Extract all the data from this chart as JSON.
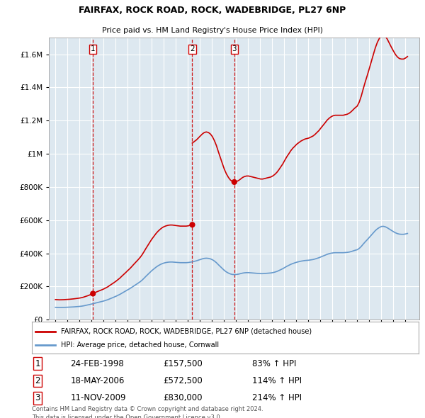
{
  "title": "FAIRFAX, ROCK ROAD, ROCK, WADEBRIDGE, PL27 6NP",
  "subtitle": "Price paid vs. HM Land Registry's House Price Index (HPI)",
  "legend_line1": "FAIRFAX, ROCK ROAD, ROCK, WADEBRIDGE, PL27 6NP (detached house)",
  "legend_line2": "HPI: Average price, detached house, Cornwall",
  "footer1": "Contains HM Land Registry data © Crown copyright and database right 2024.",
  "footer2": "This data is licensed under the Open Government Licence v3.0.",
  "transactions": [
    {
      "num": 1,
      "date": "24-FEB-1998",
      "price": 157500,
      "pct": "83%",
      "direction": "↑"
    },
    {
      "num": 2,
      "date": "18-MAY-2006",
      "price": 572500,
      "pct": "114%",
      "direction": "↑"
    },
    {
      "num": 3,
      "date": "11-NOV-2009",
      "price": 830000,
      "pct": "214%",
      "direction": "↑"
    }
  ],
  "transaction_years": [
    1998.15,
    2006.38,
    2009.86
  ],
  "vline_color": "#cc0000",
  "house_line_color": "#cc0000",
  "hpi_line_color": "#6699cc",
  "background_color": "#ffffff",
  "plot_bg_color": "#dde8f0",
  "grid_color": "#ffffff",
  "ylim": [
    0,
    1700000
  ],
  "xlim": [
    1994.5,
    2025.2
  ],
  "hpi_data_years": [
    1995.04,
    1995.21,
    1995.38,
    1995.54,
    1995.71,
    1995.88,
    1996.04,
    1996.21,
    1996.38,
    1996.54,
    1996.71,
    1996.88,
    1997.04,
    1997.21,
    1997.38,
    1997.54,
    1997.71,
    1997.88,
    1998.04,
    1998.21,
    1998.38,
    1998.54,
    1998.71,
    1998.88,
    1999.04,
    1999.21,
    1999.38,
    1999.54,
    1999.71,
    1999.88,
    2000.04,
    2000.21,
    2000.38,
    2000.54,
    2000.71,
    2000.88,
    2001.04,
    2001.21,
    2001.38,
    2001.54,
    2001.71,
    2001.88,
    2002.04,
    2002.21,
    2002.38,
    2002.54,
    2002.71,
    2002.88,
    2003.04,
    2003.21,
    2003.38,
    2003.54,
    2003.71,
    2003.88,
    2004.04,
    2004.21,
    2004.38,
    2004.54,
    2004.71,
    2004.88,
    2005.04,
    2005.21,
    2005.38,
    2005.54,
    2005.71,
    2005.88,
    2006.04,
    2006.21,
    2006.38,
    2006.54,
    2006.71,
    2006.88,
    2007.04,
    2007.21,
    2007.38,
    2007.54,
    2007.71,
    2007.88,
    2008.04,
    2008.21,
    2008.38,
    2008.54,
    2008.71,
    2008.88,
    2009.04,
    2009.21,
    2009.38,
    2009.54,
    2009.71,
    2009.88,
    2010.04,
    2010.21,
    2010.38,
    2010.54,
    2010.71,
    2010.88,
    2011.04,
    2011.21,
    2011.38,
    2011.54,
    2011.71,
    2011.88,
    2012.04,
    2012.21,
    2012.38,
    2012.54,
    2012.71,
    2012.88,
    2013.04,
    2013.21,
    2013.38,
    2013.54,
    2013.71,
    2013.88,
    2014.04,
    2014.21,
    2014.38,
    2014.54,
    2014.71,
    2014.88,
    2015.04,
    2015.21,
    2015.38,
    2015.54,
    2015.71,
    2015.88,
    2016.04,
    2016.21,
    2016.38,
    2016.54,
    2016.71,
    2016.88,
    2017.04,
    2017.21,
    2017.38,
    2017.54,
    2017.71,
    2017.88,
    2018.04,
    2018.21,
    2018.38,
    2018.54,
    2018.71,
    2018.88,
    2019.04,
    2019.21,
    2019.38,
    2019.54,
    2019.71,
    2019.88,
    2020.04,
    2020.21,
    2020.38,
    2020.54,
    2020.71,
    2020.88,
    2021.04,
    2021.21,
    2021.38,
    2021.54,
    2021.71,
    2021.88,
    2022.04,
    2022.21,
    2022.38,
    2022.54,
    2022.71,
    2022.88,
    2023.04,
    2023.21,
    2023.38,
    2023.54,
    2023.71,
    2023.88,
    2024.04,
    2024.21
  ],
  "hpi_data_values": [
    75000,
    74500,
    74000,
    74200,
    74500,
    75000,
    75500,
    76000,
    76800,
    77500,
    78500,
    79500,
    80500,
    82000,
    84000,
    86500,
    89000,
    92000,
    95000,
    98000,
    101000,
    104000,
    107000,
    110000,
    113000,
    117000,
    121000,
    126000,
    131000,
    136000,
    141000,
    147000,
    153000,
    160000,
    167000,
    174000,
    181000,
    188000,
    196000,
    204000,
    212000,
    220000,
    228000,
    238000,
    250000,
    262000,
    274000,
    286000,
    297000,
    307000,
    317000,
    325000,
    332000,
    338000,
    342000,
    345000,
    347000,
    348000,
    348000,
    347000,
    346000,
    345000,
    344000,
    344000,
    344000,
    344000,
    345000,
    347000,
    349000,
    352000,
    355000,
    359000,
    363000,
    367000,
    370000,
    371000,
    370000,
    367000,
    362000,
    354000,
    344000,
    332000,
    320000,
    308000,
    297000,
    288000,
    281000,
    276000,
    273000,
    272000,
    273000,
    275000,
    278000,
    281000,
    283000,
    284000,
    284000,
    283000,
    282000,
    281000,
    280000,
    279000,
    278000,
    278000,
    279000,
    280000,
    281000,
    282000,
    284000,
    287000,
    291000,
    296000,
    302000,
    308000,
    315000,
    322000,
    328000,
    334000,
    339000,
    343000,
    347000,
    350000,
    353000,
    355000,
    357000,
    358000,
    359000,
    361000,
    363000,
    366000,
    370000,
    374000,
    379000,
    384000,
    389000,
    394000,
    398000,
    401000,
    403000,
    404000,
    404000,
    404000,
    404000,
    404000,
    405000,
    406000,
    408000,
    411000,
    415000,
    419000,
    422000,
    430000,
    442000,
    456000,
    470000,
    483000,
    496000,
    510000,
    524000,
    537000,
    548000,
    556000,
    562000,
    563000,
    560000,
    554000,
    546000,
    538000,
    531000,
    524000,
    519000,
    516000,
    515000,
    515000,
    517000,
    520000
  ]
}
